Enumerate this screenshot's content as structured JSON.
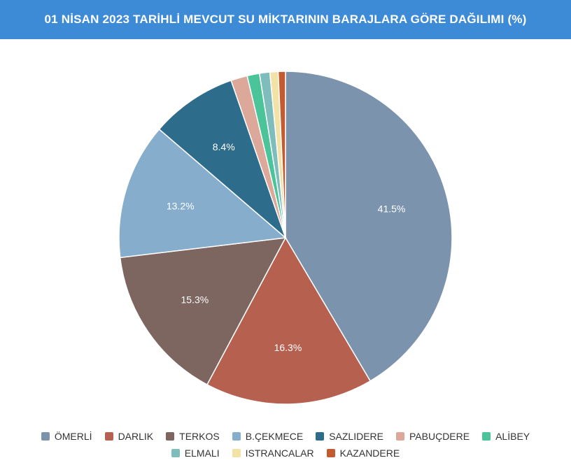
{
  "title": "01 NİSAN 2023 TARİHLİ MEVCUT SU MİKTARININ BARAJLARA GÖRE DAĞILIMI (%)",
  "colors": {
    "header_bg": "#3d8ad6"
  },
  "chart_data": {
    "type": "pie",
    "title": "01 NİSAN 2023 TARİHLİ MEVCUT SU MİKTARININ BARAJLARA GÖRE DAĞILIMI (%)",
    "start_angle": "12 o'clock, clockwise",
    "legend_position": "bottom",
    "slices": [
      {
        "name": "ÖMERLİ",
        "value": 41.5,
        "label": "41.5%",
        "color": "#7b93ad"
      },
      {
        "name": "DARLIK",
        "value": 16.3,
        "label": "16.3%",
        "color": "#b6604f"
      },
      {
        "name": "TERKOS",
        "value": 15.3,
        "label": "15.3%",
        "color": "#7d6560"
      },
      {
        "name": "B.ÇEKMECE",
        "value": 13.2,
        "label": "13.2%",
        "color": "#86aecc"
      },
      {
        "name": "SAZLIDERE",
        "value": 8.4,
        "label": "8.4%",
        "color": "#2e6c8c"
      },
      {
        "name": "PABUÇDERE",
        "value": 1.6,
        "label": "",
        "color": "#dca89a"
      },
      {
        "name": "ALİBEY",
        "value": 1.2,
        "label": "",
        "color": "#4cc49a"
      },
      {
        "name": "ELMALI",
        "value": 1.0,
        "label": "",
        "color": "#7fbdbd"
      },
      {
        "name": "ISTRANCALAR",
        "value": 0.8,
        "label": "",
        "color": "#f3e2a6"
      },
      {
        "name": "KAZANDERE",
        "value": 0.7,
        "label": "",
        "color": "#c45a2f"
      }
    ]
  }
}
